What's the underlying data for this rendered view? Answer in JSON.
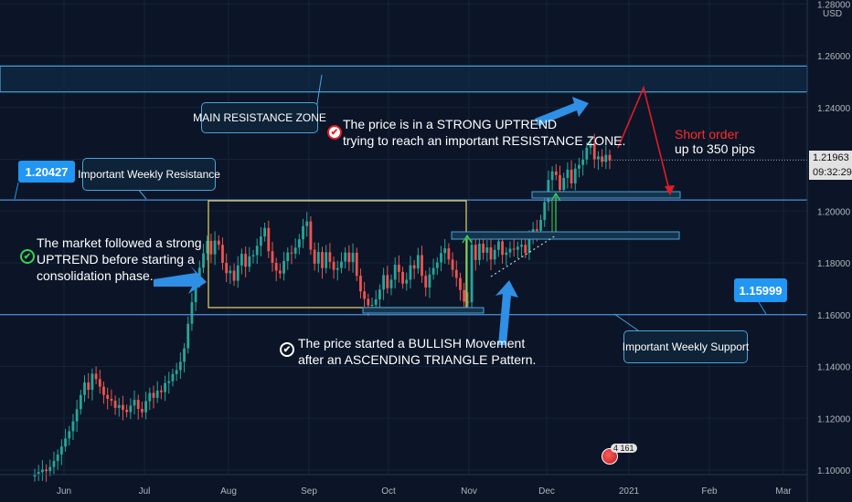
{
  "colors": {
    "background": "#0b1527",
    "up": "#26a69a",
    "down": "#ef5350",
    "line": "#4f8fd6",
    "box": "#e8d46a",
    "resistance_zone": "#4aa3d8",
    "badge": "#2196f3",
    "red": "#e31b23"
  },
  "chart_data": {
    "type": "candlestick",
    "ylim": [
      1.098,
      1.281
    ],
    "y_ticks": [
      "1.28000",
      "1.26000",
      "1.24000",
      "1.22000",
      "1.20000",
      "1.18000",
      "1.16000",
      "1.14000",
      "1.12000",
      "1.10000"
    ],
    "x_ticks": [
      "Jun",
      "Jul",
      "Aug",
      "Sep",
      "Oct",
      "Nov",
      "Dec",
      "2021",
      "Feb",
      "Mar"
    ],
    "currency": "USD",
    "last_price": "1.21963",
    "countdown": "09:32:29",
    "levels": {
      "weekly_resistance": "1.20427",
      "weekly_support": "1.15999"
    },
    "resistance_zone": [
      1.246,
      1.256
    ],
    "candles_close": [
      1.0985,
      1.0992,
      1.1002,
      1.0996,
      1.1012,
      1.1035,
      1.106,
      1.1091,
      1.1122,
      1.115,
      1.1188,
      1.1235,
      1.129,
      1.1338,
      1.131,
      1.1372,
      1.1351,
      1.1322,
      1.129,
      1.1275,
      1.1268,
      1.124,
      1.1251,
      1.1233,
      1.1224,
      1.1249,
      1.1271,
      1.1236,
      1.1223,
      1.1266,
      1.1298,
      1.1279,
      1.1307,
      1.1301,
      1.1336,
      1.1343,
      1.1371,
      1.1386,
      1.1418,
      1.147,
      1.1565,
      1.1648,
      1.1745,
      1.1781,
      1.1837,
      1.1885,
      1.1833,
      1.1886,
      1.187,
      1.18,
      1.176,
      1.177,
      1.1731,
      1.179,
      1.1835,
      1.1785,
      1.1825,
      1.183,
      1.1866,
      1.1902,
      1.1935,
      1.1845,
      1.18,
      1.177,
      1.1759,
      1.1807,
      1.184,
      1.1836,
      1.1859,
      1.1891,
      1.1942,
      1.196,
      1.1851,
      1.1797,
      1.1842,
      1.178,
      1.1841,
      1.1804,
      1.1773,
      1.178,
      1.1805,
      1.184,
      1.1803,
      1.1839,
      1.175,
      1.169,
      1.1661,
      1.1636,
      1.1638,
      1.1659,
      1.1697,
      1.1753,
      1.1702,
      1.1735,
      1.1793,
      1.1765,
      1.172,
      1.1735,
      1.1791,
      1.1778,
      1.183,
      1.175,
      1.1705,
      1.1755,
      1.178,
      1.1802,
      1.1838,
      1.1856,
      1.1813,
      1.1773,
      1.1742,
      1.1695,
      1.165,
      1.1648,
      1.187,
      1.1811,
      1.1874,
      1.1839,
      1.186,
      1.1813,
      1.185,
      1.1883,
      1.1831,
      1.184,
      1.1855,
      1.1851,
      1.1862,
      1.187,
      1.1838,
      1.1906,
      1.193,
      1.1924,
      1.1966,
      1.2035,
      1.212,
      1.2153,
      1.2139,
      1.2082,
      1.2128,
      1.216,
      1.2107,
      1.2164,
      1.2178,
      1.2199,
      1.2245,
      1.2262,
      1.22,
      1.2211,
      1.219,
      1.2217,
      1.2196
    ]
  },
  "annotations": {
    "main_resistance": "MAIN RESISTANCE ZONE",
    "strong_uptrend_1": "The price is in a STRONG UPTREND",
    "strong_uptrend_2": "trying to reach an important RESISTANCE ZONE.",
    "short_order": "Short order",
    "short_pips": "up to 350 pips",
    "weekly_resistance_label": "Important Weekly Resistance",
    "weekly_support_label": "Important Weekly Support",
    "market_1": "The market followed a strong",
    "market_2": "UPTREND before starting a",
    "market_3": "consolidation phase.",
    "bullish_1": "The price started a BULLISH Movement",
    "bullish_2": "after an ASCENDING TRIANGLE Pattern."
  },
  "badge": {
    "count": "4 161"
  }
}
